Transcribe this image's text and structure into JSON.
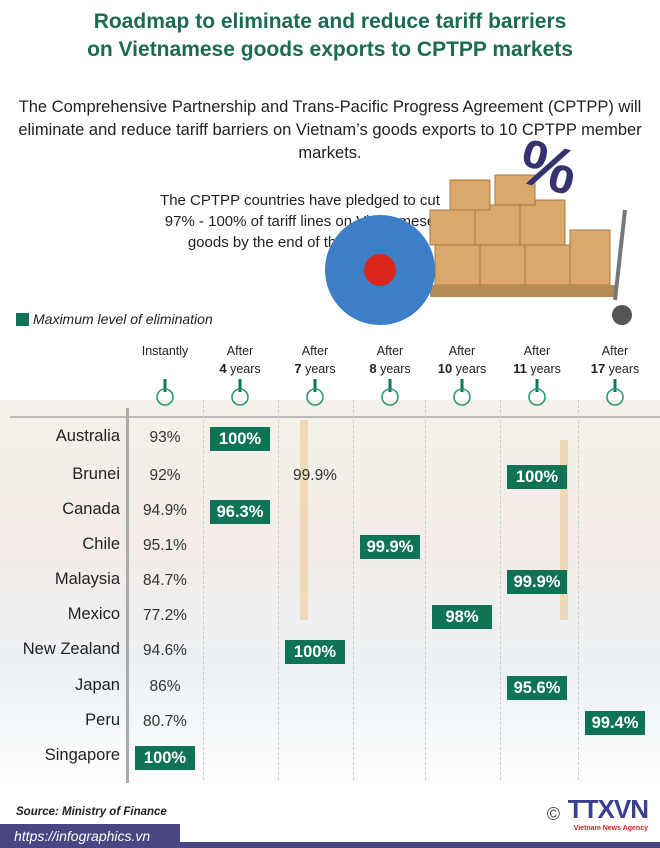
{
  "title": [
    "Roadmap to eliminate and reduce tariff barriers",
    "on Vietnamese goods exports to CPTPP markets"
  ],
  "intro": "The Comprehensive Partnership and Trans-Pacific Progress Agreement (CPTPP) will eliminate and reduce tariff barriers on Vietnam’s goods exports to 10 CPTPP member markets.",
  "pledge": "The CPTPP countries have pledged to cut 97% - 100% of tariff lines on Vietnamese goods by the end of the roadmap.",
  "legend": "Maximum level of elimination",
  "colors": {
    "accent": "#0f7356",
    "title": "#1a6b4f",
    "footer": "#4a4583"
  },
  "columns": [
    {
      "top": "Instantly",
      "num": "",
      "unit": ""
    },
    {
      "top": "After",
      "num": "4",
      "unit": " years"
    },
    {
      "top": "After",
      "num": "7",
      "unit": " years"
    },
    {
      "top": "After",
      "num": "8",
      "unit": " years"
    },
    {
      "top": "After",
      "num": "10",
      "unit": " years"
    },
    {
      "top": "After",
      "num": "11",
      "unit": " years"
    },
    {
      "top": "After",
      "num": "17",
      "unit": " years"
    }
  ],
  "rows": [
    {
      "country": "Australia",
      "cells": [
        {
          "col": 0,
          "value": "93%"
        },
        {
          "col": 1,
          "value": "100%",
          "max": true
        }
      ]
    },
    {
      "country": "Brunei",
      "cells": [
        {
          "col": 0,
          "value": "92%"
        },
        {
          "col": 2,
          "value": "99.9%"
        },
        {
          "col": 5,
          "value": "100%",
          "max": true
        }
      ]
    },
    {
      "country": "Canada",
      "cells": [
        {
          "col": 0,
          "value": "94.9%"
        },
        {
          "col": 1,
          "value": "96.3%",
          "max": true
        }
      ]
    },
    {
      "country": "Chile",
      "cells": [
        {
          "col": 0,
          "value": "95.1%"
        },
        {
          "col": 3,
          "value": "99.9%",
          "max": true
        }
      ]
    },
    {
      "country": "Malaysia",
      "cells": [
        {
          "col": 0,
          "value": "84.7%"
        },
        {
          "col": 5,
          "value": "99.9%",
          "max": true
        }
      ]
    },
    {
      "country": "Mexico",
      "cells": [
        {
          "col": 0,
          "value": "77.2%"
        },
        {
          "col": 4,
          "value": "98%",
          "max": true
        }
      ]
    },
    {
      "country": "New Zealand",
      "cells": [
        {
          "col": 0,
          "value": "94.6%"
        },
        {
          "col": 2,
          "value": "100%",
          "max": true
        }
      ]
    },
    {
      "country": "Japan",
      "cells": [
        {
          "col": 0,
          "value": "86%"
        },
        {
          "col": 5,
          "value": "95.6%",
          "max": true
        }
      ]
    },
    {
      "country": "Peru",
      "cells": [
        {
          "col": 0,
          "value": "80.7%"
        },
        {
          "col": 6,
          "value": "99.4%",
          "max": true
        }
      ]
    },
    {
      "country": "Singapore",
      "cells": [
        {
          "col": 0,
          "value": "100%",
          "max": true
        }
      ]
    }
  ],
  "source": "Source: Ministry of Finance",
  "url": "https://infographics.vn",
  "copyright": "©",
  "logo": "TTXVN",
  "logo_sub": "Vietnam News Agency",
  "percent_symbol": "%"
}
